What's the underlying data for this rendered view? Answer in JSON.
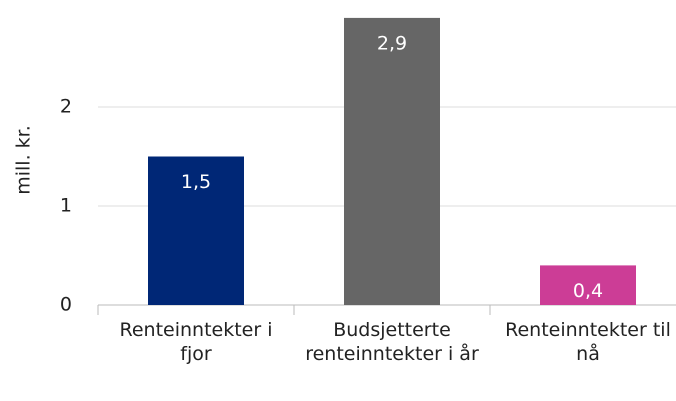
{
  "chart_data": {
    "type": "bar",
    "y_label": "mill. kr.",
    "categories": [
      "Renteinntekter i fjor",
      "Budsjetterte renteinntekter i år",
      "Renteinntekter til nå"
    ],
    "values": [
      1.5,
      2.9,
      0.4
    ],
    "value_labels": [
      "1,5",
      "2,9",
      "0,4"
    ],
    "colors": [
      "#002776",
      "#666666",
      "#cc3d96"
    ],
    "ylim": [
      0,
      3
    ],
    "yticks": [
      0,
      1,
      2
    ],
    "grid": true
  }
}
